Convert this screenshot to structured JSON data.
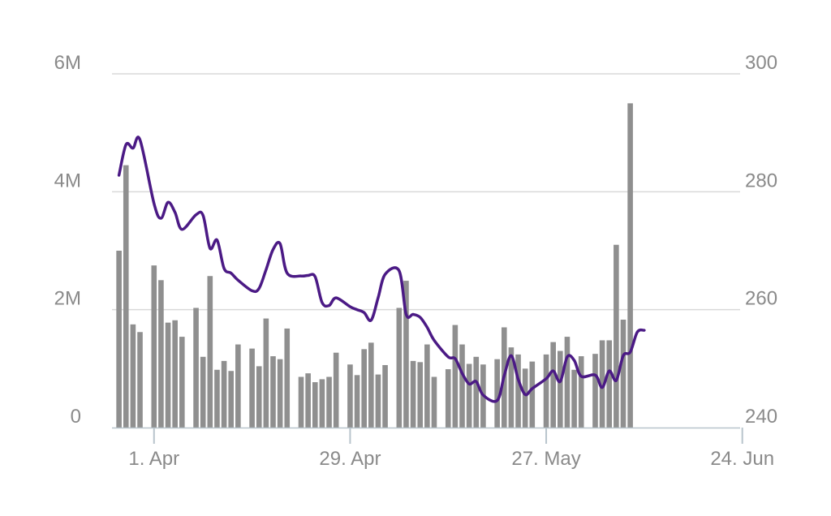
{
  "chart_data": {
    "type": "bar",
    "title": "",
    "xlabel": "",
    "ylabel": "",
    "colors": {
      "bars": "#8f8f8f",
      "line": "#4b1a85",
      "grid": "#d9d9d9",
      "axis": "#b8c4cc",
      "text": "#8a8a8a"
    },
    "y_left": {
      "min": 0,
      "max": 6000000,
      "ticks": [
        {
          "value": 0,
          "label": "0"
        },
        {
          "value": 2000000,
          "label": "2M"
        },
        {
          "value": 4000000,
          "label": "4M"
        },
        {
          "value": 6000000,
          "label": "6M"
        }
      ]
    },
    "y_right": {
      "min": 240,
      "max": 300,
      "ticks": [
        {
          "value": 240,
          "label": "240"
        },
        {
          "value": 260,
          "label": "260"
        },
        {
          "value": 280,
          "label": "280"
        },
        {
          "value": 300,
          "label": "300"
        }
      ]
    },
    "x_ticks": [
      {
        "date": "2019-04-01",
        "label": "1. Apr"
      },
      {
        "date": "2019-04-29",
        "label": "29. Apr"
      },
      {
        "date": "2019-05-27",
        "label": "27. May"
      },
      {
        "date": "2019-06-24",
        "label": "24. Jun"
      }
    ],
    "grid": true,
    "legend": "none",
    "series": [
      {
        "type": "bar",
        "axis": "left",
        "points": [
          [
            "2019-03-27",
            3000000
          ],
          [
            "2019-03-28",
            4450000
          ],
          [
            "2019-03-29",
            1750000
          ],
          [
            "2019-03-30",
            1620000
          ],
          [
            "2019-04-01",
            2750000
          ],
          [
            "2019-04-02",
            2500000
          ],
          [
            "2019-04-03",
            1780000
          ],
          [
            "2019-04-04",
            1820000
          ],
          [
            "2019-04-05",
            1540000
          ],
          [
            "2019-04-07",
            2030000
          ],
          [
            "2019-04-08",
            1200000
          ],
          [
            "2019-04-09",
            2570000
          ],
          [
            "2019-04-10",
            980000
          ],
          [
            "2019-04-11",
            1130000
          ],
          [
            "2019-04-12",
            960000
          ],
          [
            "2019-04-13",
            1410000
          ],
          [
            "2019-04-15",
            1340000
          ],
          [
            "2019-04-16",
            1040000
          ],
          [
            "2019-04-17",
            1850000
          ],
          [
            "2019-04-18",
            1210000
          ],
          [
            "2019-04-19",
            1160000
          ],
          [
            "2019-04-20",
            1680000
          ],
          [
            "2019-04-22",
            860000
          ],
          [
            "2019-04-23",
            920000
          ],
          [
            "2019-04-24",
            770000
          ],
          [
            "2019-04-25",
            820000
          ],
          [
            "2019-04-26",
            860000
          ],
          [
            "2019-04-27",
            1270000
          ],
          [
            "2019-04-29",
            1070000
          ],
          [
            "2019-04-30",
            890000
          ],
          [
            "2019-05-01",
            1330000
          ],
          [
            "2019-05-02",
            1440000
          ],
          [
            "2019-05-03",
            900000
          ],
          [
            "2019-05-04",
            1060000
          ],
          [
            "2019-05-06",
            2030000
          ],
          [
            "2019-05-07",
            2490000
          ],
          [
            "2019-05-08",
            1130000
          ],
          [
            "2019-05-09",
            1110000
          ],
          [
            "2019-05-10",
            1410000
          ],
          [
            "2019-05-11",
            860000
          ],
          [
            "2019-05-13",
            990000
          ],
          [
            "2019-05-14",
            1740000
          ],
          [
            "2019-05-15",
            1410000
          ],
          [
            "2019-05-16",
            1080000
          ],
          [
            "2019-05-17",
            1200000
          ],
          [
            "2019-05-18",
            1070000
          ],
          [
            "2019-05-20",
            1160000
          ],
          [
            "2019-05-21",
            1700000
          ],
          [
            "2019-05-22",
            1360000
          ],
          [
            "2019-05-23",
            1240000
          ],
          [
            "2019-05-24",
            1000000
          ],
          [
            "2019-05-25",
            1120000
          ],
          [
            "2019-05-27",
            1240000
          ],
          [
            "2019-05-28",
            1450000
          ],
          [
            "2019-05-29",
            1300000
          ],
          [
            "2019-05-30",
            1540000
          ],
          [
            "2019-05-31",
            980000
          ],
          [
            "2019-06-01",
            1210000
          ],
          [
            "2019-06-03",
            1250000
          ],
          [
            "2019-06-04",
            1480000
          ],
          [
            "2019-06-05",
            1480000
          ],
          [
            "2019-06-06",
            3100000
          ],
          [
            "2019-06-07",
            1830000
          ],
          [
            "2019-06-08",
            5500000
          ]
        ]
      },
      {
        "type": "line",
        "axis": "right",
        "points": [
          [
            "2019-03-27",
            282.8
          ],
          [
            "2019-03-28",
            288
          ],
          [
            "2019-03-29",
            287.4
          ],
          [
            "2019-03-30",
            288.8
          ],
          [
            "2019-04-01",
            278
          ],
          [
            "2019-04-02",
            275.5
          ],
          [
            "2019-04-03",
            278.2
          ],
          [
            "2019-04-04",
            276.5
          ],
          [
            "2019-04-05",
            273.6
          ],
          [
            "2019-04-07",
            276.1
          ],
          [
            "2019-04-08",
            276
          ],
          [
            "2019-04-09",
            270.4
          ],
          [
            "2019-04-10",
            271.8
          ],
          [
            "2019-04-11",
            267
          ],
          [
            "2019-04-12",
            266.2
          ],
          [
            "2019-04-13",
            265
          ],
          [
            "2019-04-15",
            263.2
          ],
          [
            "2019-04-16",
            263.6
          ],
          [
            "2019-04-17",
            266.8
          ],
          [
            "2019-04-18",
            270.2
          ],
          [
            "2019-04-19",
            271.2
          ],
          [
            "2019-04-20",
            266.2
          ],
          [
            "2019-04-22",
            265.7
          ],
          [
            "2019-04-23",
            265.8
          ],
          [
            "2019-04-24",
            265.6
          ],
          [
            "2019-04-25",
            261.2
          ],
          [
            "2019-04-26",
            260.7
          ],
          [
            "2019-04-27",
            262
          ],
          [
            "2019-04-29",
            260.5
          ],
          [
            "2019-04-30",
            260
          ],
          [
            "2019-05-01",
            259.5
          ],
          [
            "2019-05-02",
            258.2
          ],
          [
            "2019-05-03",
            262
          ],
          [
            "2019-05-04",
            266
          ],
          [
            "2019-05-06",
            266.6
          ],
          [
            "2019-05-07",
            259.2
          ],
          [
            "2019-05-08",
            259.2
          ],
          [
            "2019-05-09",
            258.7
          ],
          [
            "2019-05-10",
            257
          ],
          [
            "2019-05-11",
            254.8
          ],
          [
            "2019-05-13",
            252
          ],
          [
            "2019-05-14",
            251.7
          ],
          [
            "2019-05-15",
            249.2
          ],
          [
            "2019-05-16",
            247.4
          ],
          [
            "2019-05-17",
            247.8
          ],
          [
            "2019-05-18",
            245.5
          ],
          [
            "2019-05-20",
            244.6
          ],
          [
            "2019-05-21",
            248.8
          ],
          [
            "2019-05-22",
            252.2
          ],
          [
            "2019-05-23",
            248.2
          ],
          [
            "2019-05-24",
            245.6
          ],
          [
            "2019-05-25",
            246.6
          ],
          [
            "2019-05-27",
            248.3
          ],
          [
            "2019-05-28",
            249.6
          ],
          [
            "2019-05-29",
            247.8
          ],
          [
            "2019-05-30",
            252
          ],
          [
            "2019-05-31",
            251.4
          ],
          [
            "2019-06-01",
            248.7
          ],
          [
            "2019-06-03",
            248.9
          ],
          [
            "2019-06-04",
            246.8
          ],
          [
            "2019-06-05",
            249.6
          ],
          [
            "2019-06-06",
            248
          ],
          [
            "2019-06-07",
            252.2
          ],
          [
            "2019-06-08",
            252.8
          ],
          [
            "2019-06-09",
            256.2
          ],
          [
            "2019-06-10",
            256.5
          ]
        ]
      }
    ]
  }
}
